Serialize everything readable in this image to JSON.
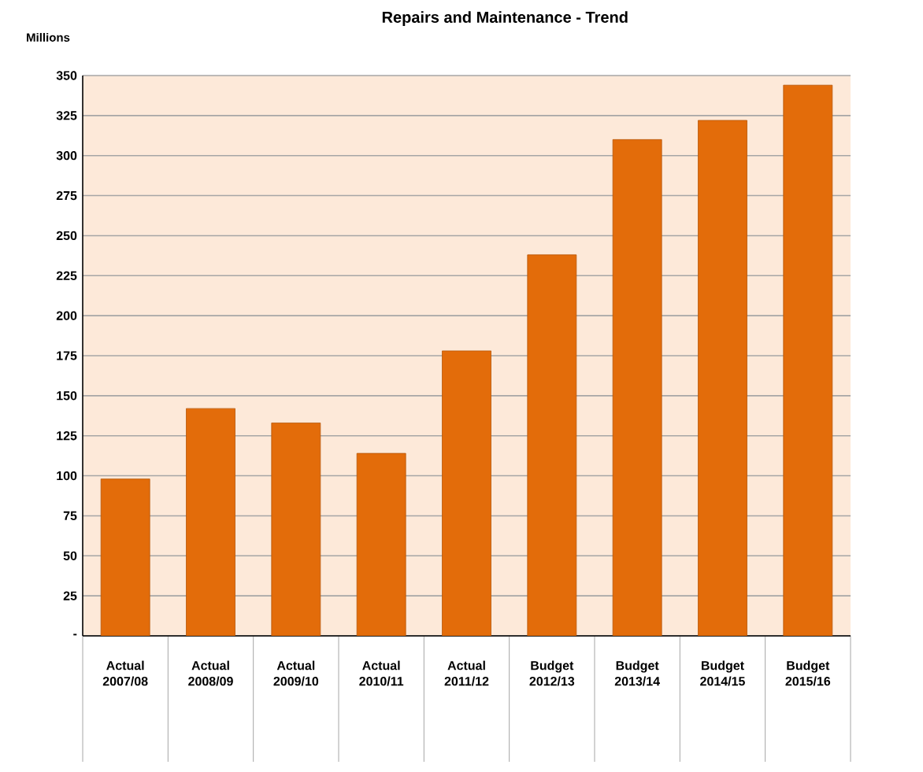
{
  "chart_data": {
    "type": "bar",
    "title": "Repairs and Maintenance - Trend",
    "ylabel": "Millions",
    "categories": [
      "Actual 2007/08",
      "Actual 2008/09",
      "Actual 2009/10",
      "Actual 2010/11",
      "Actual 2011/12",
      "Budget 2012/13",
      "Budget 2013/14",
      "Budget 2014/15",
      "Budget 2015/16"
    ],
    "values": [
      98,
      142,
      133,
      114,
      178,
      238,
      310,
      322,
      344
    ],
    "color": "#e36c0a",
    "ylim": [
      0,
      350
    ],
    "yticks": [
      {
        "value": 0,
        "label": "-"
      },
      25,
      50,
      75,
      100,
      125,
      150,
      175,
      200,
      225,
      250,
      275,
      300,
      325,
      350
    ],
    "grid": "y"
  }
}
